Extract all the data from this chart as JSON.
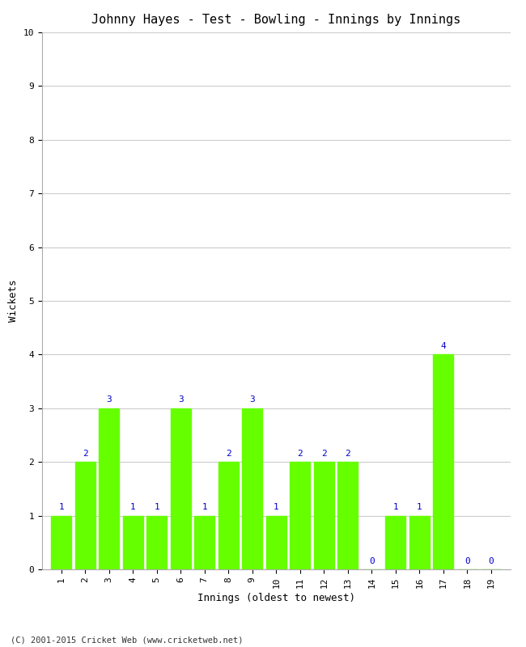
{
  "title": "Johnny Hayes - Test - Bowling - Innings by Innings",
  "xlabel": "Innings (oldest to newest)",
  "ylabel": "Wickets",
  "innings": [
    1,
    2,
    3,
    4,
    5,
    6,
    7,
    8,
    9,
    10,
    11,
    12,
    13,
    14,
    15,
    16,
    17,
    18,
    19
  ],
  "wickets": [
    1,
    2,
    3,
    1,
    1,
    3,
    1,
    2,
    3,
    1,
    2,
    2,
    2,
    0,
    1,
    1,
    4,
    0,
    0
  ],
  "bar_color": "#66ff00",
  "bar_edge_color": "#66ff00",
  "label_color": "#0000cc",
  "ylim": [
    0,
    10
  ],
  "yticks": [
    0,
    1,
    2,
    3,
    4,
    5,
    6,
    7,
    8,
    9,
    10
  ],
  "background_color": "#ffffff",
  "grid_color": "#cccccc",
  "title_fontsize": 11,
  "axis_label_fontsize": 9,
  "tick_fontsize": 8,
  "label_fontsize": 8,
  "footer": "(C) 2001-2015 Cricket Web (www.cricketweb.net)"
}
